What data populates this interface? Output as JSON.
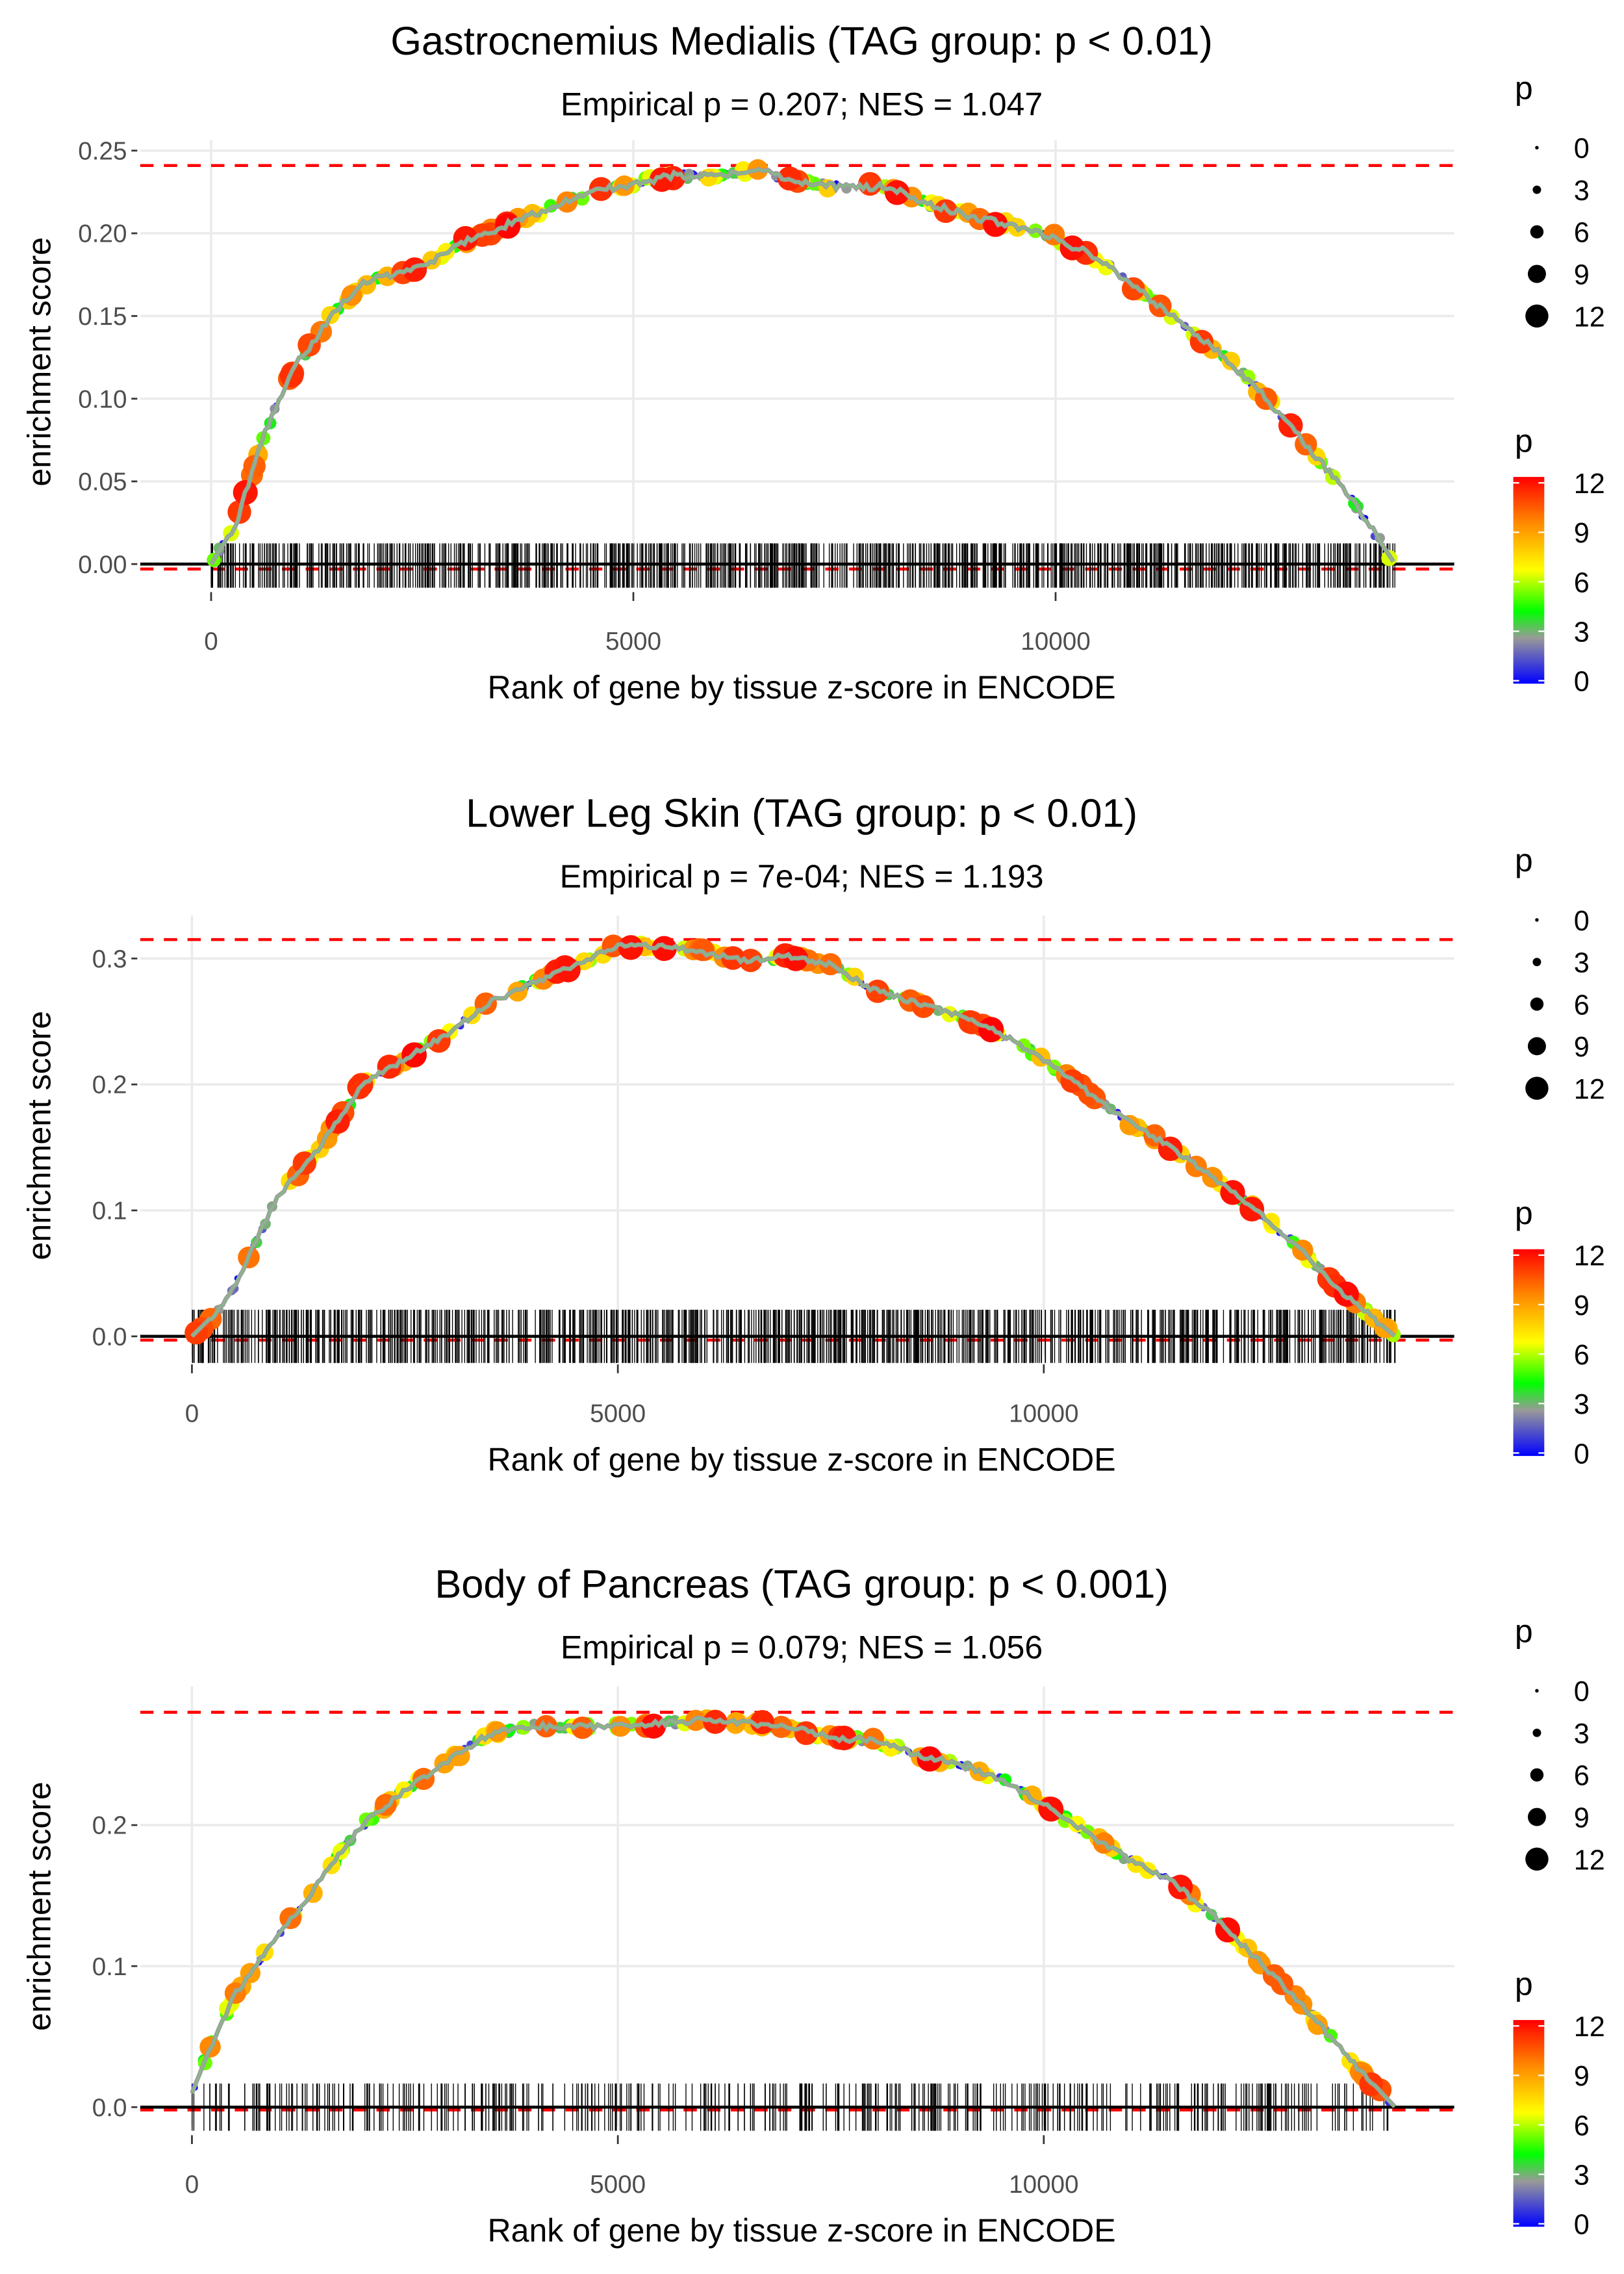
{
  "chart_data": [
    {
      "type": "line",
      "title": "Gastrocnemius Medialis (TAG group: p < 0.01)",
      "subtitle": "Empirical p = 0.207; NES = 1.047",
      "xlabel": "Rank of gene by tissue z-score in ENCODE",
      "ylabel": "enrichment score",
      "xlim": [
        -700,
        14900
      ],
      "ylim": [
        -0.015,
        0.26
      ],
      "x_ticks": [
        0,
        5000,
        10000
      ],
      "x_tick_labels": [
        "0",
        "5000",
        "10000"
      ],
      "y_ticks": [
        0,
        0.05,
        0.1,
        0.15,
        0.2,
        0.25
      ],
      "y_tick_labels": [
        "0.00",
        "0.05",
        "0.10",
        "0.15",
        "0.20",
        "0.25"
      ],
      "max_es_line": 0.241,
      "min_es_line": -0.003,
      "rank_end": 14020,
      "curve": [
        [
          0,
          0
        ],
        [
          300,
          0.025
        ],
        [
          600,
          0.075
        ],
        [
          1000,
          0.12
        ],
        [
          1500,
          0.155
        ],
        [
          1800,
          0.17
        ],
        [
          2100,
          0.175
        ],
        [
          2500,
          0.18
        ],
        [
          3000,
          0.195
        ],
        [
          3500,
          0.205
        ],
        [
          4000,
          0.215
        ],
        [
          4500,
          0.225
        ],
        [
          5000,
          0.23
        ],
        [
          5500,
          0.235
        ],
        [
          6000,
          0.235
        ],
        [
          6500,
          0.238
        ],
        [
          7000,
          0.23
        ],
        [
          7500,
          0.228
        ],
        [
          8000,
          0.228
        ],
        [
          8500,
          0.218
        ],
        [
          9000,
          0.21
        ],
        [
          9500,
          0.205
        ],
        [
          10000,
          0.197
        ],
        [
          10500,
          0.185
        ],
        [
          11000,
          0.165
        ],
        [
          11500,
          0.145
        ],
        [
          12000,
          0.125
        ],
        [
          12500,
          0.1
        ],
        [
          13000,
          0.07
        ],
        [
          13500,
          0.04
        ],
        [
          14020,
          0
        ]
      ],
      "legend": {
        "size_title": "p",
        "size_labels": [
          "0",
          "3",
          "6",
          "9",
          "12"
        ],
        "color_title": "p",
        "color_labels": [
          "12",
          "9",
          "6",
          "3",
          "0"
        ]
      }
    },
    {
      "type": "line",
      "title": "Lower Leg Skin (TAG group: p < 0.01)",
      "subtitle": "Empirical p = 7e-04; NES = 1.193",
      "xlabel": "Rank of gene by tissue z-score in ENCODE",
      "ylabel": "enrichment score",
      "xlim": [
        -700,
        14900
      ],
      "ylim": [
        -0.01,
        0.33
      ],
      "x_ticks": [
        0,
        5000,
        10000
      ],
      "x_tick_labels": [
        "0",
        "5000",
        "10000"
      ],
      "y_ticks": [
        0,
        0.1,
        0.2,
        0.3
      ],
      "y_tick_labels": [
        "0.0",
        "0.1",
        "0.2",
        "0.3"
      ],
      "max_es_line": 0.315,
      "min_es_line": -0.003,
      "rank_end": 14125,
      "curve": [
        [
          0,
          0
        ],
        [
          300,
          0.02
        ],
        [
          500,
          0.04
        ],
        [
          1000,
          0.11
        ],
        [
          1500,
          0.15
        ],
        [
          2000,
          0.2
        ],
        [
          2500,
          0.22
        ],
        [
          3000,
          0.24
        ],
        [
          3500,
          0.265
        ],
        [
          4000,
          0.28
        ],
        [
          4500,
          0.295
        ],
        [
          5000,
          0.31
        ],
        [
          5500,
          0.31
        ],
        [
          6000,
          0.305
        ],
        [
          6500,
          0.298
        ],
        [
          7000,
          0.302
        ],
        [
          7500,
          0.295
        ],
        [
          8000,
          0.275
        ],
        [
          8500,
          0.265
        ],
        [
          9000,
          0.255
        ],
        [
          9500,
          0.24
        ],
        [
          10000,
          0.22
        ],
        [
          10500,
          0.195
        ],
        [
          11000,
          0.17
        ],
        [
          11500,
          0.15
        ],
        [
          12000,
          0.125
        ],
        [
          12500,
          0.1
        ],
        [
          13000,
          0.07
        ],
        [
          13500,
          0.035
        ],
        [
          14125,
          0
        ]
      ],
      "legend": {
        "size_title": "p",
        "size_labels": [
          "0",
          "3",
          "6",
          "9",
          "12"
        ],
        "color_title": "p",
        "color_labels": [
          "12",
          "9",
          "6",
          "3",
          "0"
        ]
      }
    },
    {
      "type": "line",
      "title": "Body of Pancreas (TAG group: p < 0.001)",
      "subtitle": "Empirical p = 0.079; NES = 1.056",
      "xlabel": "Rank of gene by tissue z-score in ENCODE",
      "ylabel": "enrichment score",
      "xlim": [
        -700,
        14900
      ],
      "ylim": [
        -0.01,
        0.3
      ],
      "x_ticks": [
        0,
        5000,
        10000
      ],
      "x_tick_labels": [
        "0",
        "5000",
        "10000"
      ],
      "y_ticks": [
        0,
        0.1,
        0.2
      ],
      "y_tick_labels": [
        "0.0",
        "0.1",
        "0.2"
      ],
      "max_es_line": 0.28,
      "min_es_line": -0.002,
      "rank_end": 14125,
      "curve": [
        [
          0,
          0.01
        ],
        [
          200,
          0.04
        ],
        [
          500,
          0.08
        ],
        [
          1000,
          0.12
        ],
        [
          1500,
          0.16
        ],
        [
          2000,
          0.2
        ],
        [
          2500,
          0.225
        ],
        [
          3000,
          0.245
        ],
        [
          3500,
          0.265
        ],
        [
          4000,
          0.27
        ],
        [
          4500,
          0.27
        ],
        [
          5000,
          0.27
        ],
        [
          5500,
          0.272
        ],
        [
          6000,
          0.275
        ],
        [
          6500,
          0.272
        ],
        [
          7000,
          0.27
        ],
        [
          7500,
          0.262
        ],
        [
          8000,
          0.26
        ],
        [
          8500,
          0.25
        ],
        [
          9000,
          0.243
        ],
        [
          9500,
          0.232
        ],
        [
          10000,
          0.215
        ],
        [
          10500,
          0.195
        ],
        [
          11000,
          0.175
        ],
        [
          11500,
          0.16
        ],
        [
          12000,
          0.135
        ],
        [
          12500,
          0.105
        ],
        [
          13000,
          0.075
        ],
        [
          13500,
          0.04
        ],
        [
          14125,
          0
        ]
      ],
      "legend": {
        "size_title": "p",
        "size_labels": [
          "0",
          "3",
          "6",
          "9",
          "12"
        ],
        "color_title": "p",
        "color_labels": [
          "12",
          "9",
          "6",
          "3",
          "0"
        ]
      }
    }
  ],
  "colors": {
    "gradient": [
      "#0000ff",
      "#999999",
      "#00ff00",
      "#ffff00",
      "#ff8800",
      "#ff0000"
    ],
    "dashed": "#ff0000",
    "grid": "#ebebeb"
  }
}
